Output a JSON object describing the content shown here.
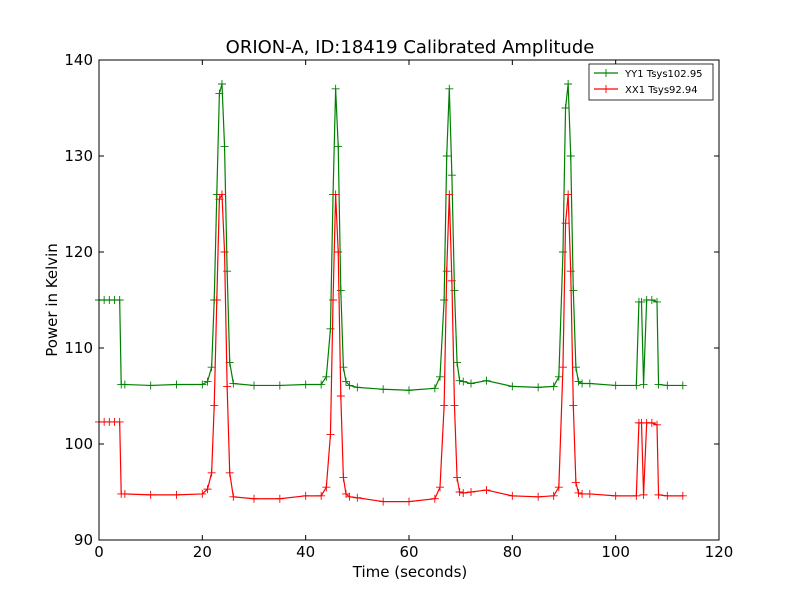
{
  "chart_data": {
    "type": "line",
    "title": "ORION-A, ID:18419 Calibrated Amplitude",
    "xlabel": "Time (seconds)",
    "ylabel": "Power in Kelvin",
    "xlim": [
      0,
      120
    ],
    "ylim": [
      90,
      140
    ],
    "xticks": [
      "0",
      "20",
      "40",
      "60",
      "80",
      "100",
      "120"
    ],
    "yticks": [
      "90",
      "100",
      "110",
      "120",
      "130",
      "140"
    ],
    "grid": false,
    "legend_position": "top-right",
    "marker": "plus",
    "series": [
      {
        "name": "YY1 Tsys102.95",
        "color": "#008000",
        "x": [
          0.0,
          1.0,
          2.0,
          3.0,
          4.0,
          4.3,
          5.0,
          10.0,
          15.0,
          20.0,
          21.0,
          21.8,
          22.3,
          22.8,
          23.3,
          23.8,
          24.3,
          24.8,
          25.3,
          26.0,
          30.0,
          35.0,
          40.0,
          43.0,
          44.0,
          44.8,
          45.3,
          45.8,
          46.3,
          46.8,
          47.3,
          47.8,
          48.5,
          50.0,
          55.0,
          60.0,
          65.0,
          66.0,
          66.8,
          67.3,
          67.8,
          68.3,
          68.8,
          69.3,
          69.8,
          70.5,
          72.0,
          75.0,
          80.0,
          85.0,
          88.0,
          89.0,
          89.8,
          90.3,
          90.8,
          91.3,
          91.8,
          92.3,
          92.8,
          93.5,
          95.0,
          100.0,
          104.0,
          104.5,
          105.0,
          105.4,
          106.0,
          107.0,
          108.0,
          108.3,
          110.0,
          113.0
        ],
        "y": [
          115.0,
          115.0,
          115.0,
          115.0,
          115.0,
          106.2,
          106.2,
          106.1,
          106.2,
          106.2,
          106.5,
          108.0,
          115.0,
          126.0,
          136.5,
          137.5,
          131.0,
          118.0,
          108.5,
          106.3,
          106.1,
          106.1,
          106.2,
          106.2,
          107.0,
          112.0,
          126.0,
          137.0,
          131.0,
          116.0,
          108.0,
          106.5,
          106.1,
          105.9,
          105.7,
          105.6,
          105.8,
          107.0,
          115.0,
          130.0,
          137.0,
          128.0,
          116.0,
          108.5,
          106.6,
          106.5,
          106.3,
          106.6,
          106.0,
          105.9,
          106.0,
          107.0,
          120.0,
          135.0,
          137.5,
          130.0,
          116.0,
          108.0,
          106.5,
          106.3,
          106.3,
          106.1,
          106.1,
          114.8,
          114.8,
          106.2,
          115.0,
          115.0,
          114.8,
          106.2,
          106.1,
          106.1
        ]
      },
      {
        "name": "XX1 Tsys92.94",
        "color": "#ff0000",
        "x": [
          0.0,
          1.0,
          2.0,
          3.0,
          4.0,
          4.3,
          5.0,
          10.0,
          15.0,
          20.0,
          21.0,
          21.8,
          22.3,
          22.8,
          23.3,
          23.8,
          24.3,
          24.8,
          25.3,
          26.0,
          30.0,
          35.0,
          40.0,
          43.0,
          44.0,
          44.8,
          45.3,
          45.8,
          46.3,
          46.8,
          47.3,
          47.8,
          48.5,
          50.0,
          55.0,
          60.0,
          65.0,
          66.0,
          66.8,
          67.3,
          67.8,
          68.3,
          68.8,
          69.3,
          69.8,
          70.5,
          72.0,
          75.0,
          80.0,
          85.0,
          88.0,
          89.0,
          89.8,
          90.3,
          90.8,
          91.3,
          91.8,
          92.3,
          92.8,
          93.5,
          95.0,
          100.0,
          104.0,
          104.5,
          105.0,
          105.4,
          106.0,
          107.0,
          108.0,
          108.3,
          110.0,
          113.0
        ],
        "y": [
          102.3,
          102.3,
          102.3,
          102.3,
          102.3,
          94.8,
          94.8,
          94.7,
          94.7,
          94.8,
          95.3,
          97.0,
          104.0,
          115.0,
          125.5,
          126.0,
          120.0,
          106.0,
          97.0,
          94.5,
          94.3,
          94.3,
          94.6,
          94.6,
          95.5,
          101.0,
          115.0,
          126.0,
          120.0,
          105.0,
          96.5,
          94.8,
          94.5,
          94.4,
          94.0,
          94.0,
          94.3,
          95.5,
          104.0,
          118.0,
          126.0,
          117.0,
          104.0,
          96.5,
          95.0,
          94.9,
          95.0,
          95.2,
          94.6,
          94.5,
          94.6,
          95.5,
          108.0,
          123.0,
          126.0,
          118.0,
          104.0,
          96.0,
          94.9,
          94.8,
          94.8,
          94.6,
          94.6,
          102.2,
          102.2,
          94.7,
          102.2,
          102.2,
          102.0,
          94.7,
          94.6,
          94.6
        ]
      }
    ]
  }
}
